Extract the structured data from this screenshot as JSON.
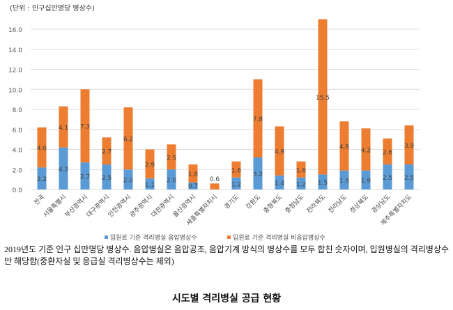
{
  "chart_data": {
    "type": "bar",
    "stacked": true,
    "unit_label": "(단위 : 인구십만명당 병상수)",
    "categories": [
      "전국",
      "서울특별시",
      "부산광역시",
      "대구광역시",
      "인천광역시",
      "광주광역시",
      "대전광역시",
      "울산광역시",
      "세종특별자치시",
      "경기도",
      "강원도",
      "충청북도",
      "충청남도",
      "전라북도",
      "전라남도",
      "경상북도",
      "경상남도",
      "제주특별자치도"
    ],
    "series": [
      {
        "name": "입원료 기준 격리병실 음압병상수",
        "color": "#5b9bd5",
        "values": [
          2.2,
          4.2,
          2.7,
          2.5,
          2.0,
          1.1,
          2.0,
          0.7,
          0.0,
          1.2,
          3.2,
          1.4,
          1.2,
          1.5,
          1.9,
          1.9,
          2.5,
          2.5
        ]
      },
      {
        "name": "입원료 기준 격리병실 비음압병상수",
        "color": "#ed7d31",
        "values": [
          4.0,
          4.1,
          7.3,
          2.7,
          6.2,
          2.9,
          2.5,
          1.8,
          0.6,
          1.6,
          7.8,
          4.9,
          1.6,
          15.5,
          4.9,
          4.2,
          2.6,
          3.9
        ]
      }
    ],
    "ylim": [
      0,
      16
    ],
    "yticks": [
      "0.0",
      "2.0",
      "4.0",
      "6.0",
      "8.0",
      "10.0",
      "12.0",
      "14.0",
      "16.0"
    ],
    "grid": true,
    "legend_position": "bottom"
  },
  "note": "2019년도 기준 인구 십만명당 병상수. 음압병실은 음압공조, 음압기계 방식의 병상수를 모두 합친 숫자이며, 입원병실의 격리병상수만 해당함(중환자실 및 응급실 격리병상수는 제외)",
  "caption": "시도별 격리병실 공급 현황"
}
